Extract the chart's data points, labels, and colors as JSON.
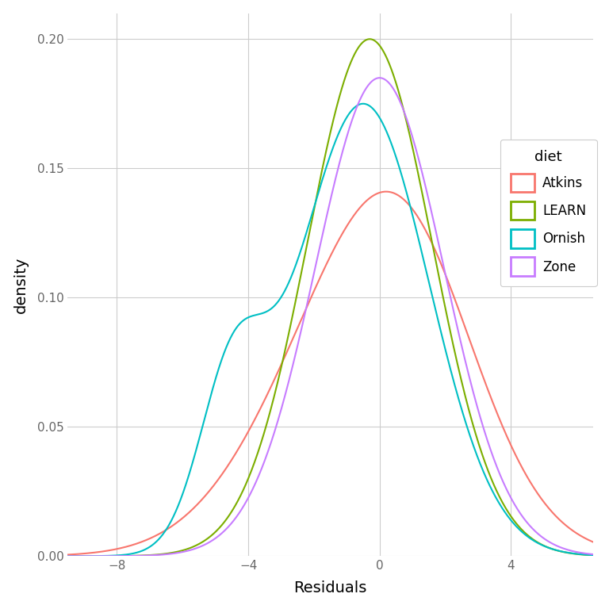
{
  "title": "",
  "xlabel": "Residuals",
  "ylabel": "density",
  "legend_title": "diet",
  "legend_labels": [
    "Atkins",
    "LEARN",
    "Ornish",
    "Zone"
  ],
  "colors": {
    "Atkins": "#F8766D",
    "LEARN": "#7CAE00",
    "Ornish": "#00BFC4",
    "Zone": "#C77CFF"
  },
  "xlim": [
    -9.5,
    6.5
  ],
  "ylim": [
    0.0,
    0.21
  ],
  "yticks": [
    0.0,
    0.05,
    0.1,
    0.15,
    0.2
  ],
  "xticks": [
    -8,
    -4,
    0,
    4
  ],
  "background_color": "#FFFFFF",
  "grid_color": "#CCCCCC",
  "axis_text_color": "#666666"
}
